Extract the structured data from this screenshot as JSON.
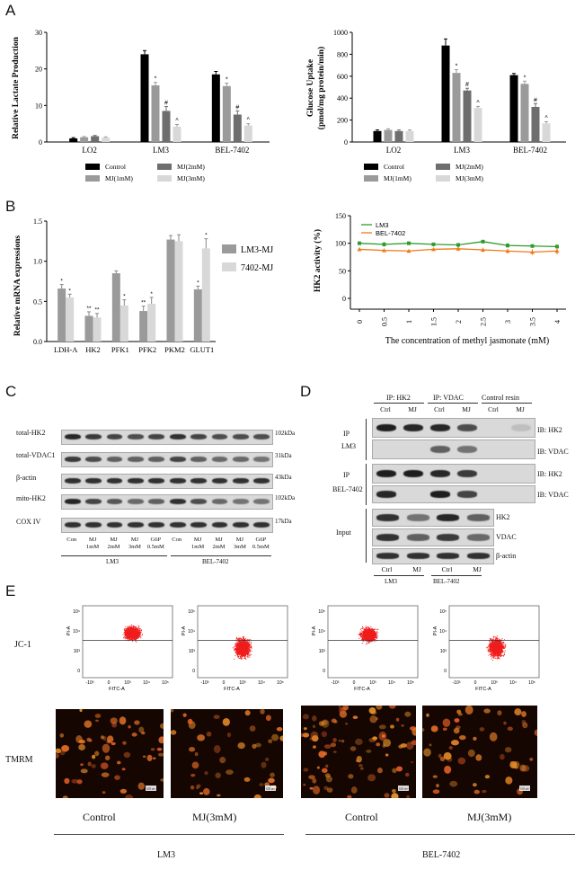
{
  "panel_labels": {
    "a": "A",
    "b": "B",
    "c": "C",
    "d": "D",
    "e": "E"
  },
  "chart_data": [
    {
      "type": "bar",
      "id": "lactate",
      "ylabel": "Relative Lactate Production",
      "ylim": [
        0,
        30
      ],
      "yticks": [
        "0",
        "10",
        "20",
        "30"
      ],
      "categories": [
        "LO2",
        "LM3",
        "BEL-7402"
      ],
      "series": [
        {
          "name": "Control",
          "color": "#000000",
          "values": [
            1.0,
            24.0,
            18.5
          ],
          "err": [
            0.2,
            1.0,
            0.8
          ],
          "sig": [
            "",
            "",
            ""
          ]
        },
        {
          "name": "MJ(1mM)",
          "color": "#9a9a9a",
          "values": [
            1.3,
            15.5,
            15.3
          ],
          "err": [
            0.2,
            0.8,
            0.8
          ],
          "sig": [
            "",
            "*",
            "*"
          ]
        },
        {
          "name": "MJ(2mM)",
          "color": "#6e6e6e",
          "values": [
            1.6,
            8.5,
            7.5
          ],
          "err": [
            0.2,
            1.2,
            1.0
          ],
          "sig": [
            "",
            "#",
            "#"
          ]
        },
        {
          "name": "MJ(3mM)",
          "color": "#d8d8d8",
          "values": [
            1.2,
            4.2,
            4.5
          ],
          "err": [
            0.2,
            0.6,
            0.5
          ],
          "sig": [
            "",
            "^",
            "^"
          ]
        }
      ],
      "legend": [
        "Control",
        "MJ(2mM)",
        "MJ(1mM)",
        "MJ(3mM)"
      ]
    },
    {
      "type": "bar",
      "id": "glucose",
      "ylabel": "Glucose Uptake (pmol/mg protein/min)",
      "ylabel1": "Glucose Uptake",
      "ylabel2": "(pmol/mg protein/min)",
      "ylim": [
        0,
        1000
      ],
      "yticks": [
        "0",
        "200",
        "400",
        "600",
        "800",
        "1000"
      ],
      "categories": [
        "LO2",
        "LM3",
        "BEL-7402"
      ],
      "series": [
        {
          "name": "Control",
          "color": "#000000",
          "values": [
            100,
            880,
            610
          ],
          "err": [
            10,
            60,
            15
          ],
          "sig": [
            "",
            "",
            ""
          ]
        },
        {
          "name": "MJ(1mM)",
          "color": "#9a9a9a",
          "values": [
            110,
            630,
            530
          ],
          "err": [
            10,
            30,
            25
          ],
          "sig": [
            "",
            "*",
            "*"
          ]
        },
        {
          "name": "MJ(2mM)",
          "color": "#6e6e6e",
          "values": [
            100,
            470,
            320
          ],
          "err": [
            10,
            20,
            30
          ],
          "sig": [
            "",
            "#",
            "#"
          ]
        },
        {
          "name": "MJ(3mM)",
          "color": "#d8d8d8",
          "values": [
            100,
            310,
            170
          ],
          "err": [
            10,
            15,
            15
          ],
          "sig": [
            "",
            "^",
            "^"
          ]
        }
      ],
      "legend": [
        "Control",
        "MJ(2mM)",
        "MJ(1mM)",
        "MJ(3mM)"
      ]
    },
    {
      "type": "bar",
      "id": "mrna",
      "ylabel": "Relative mRNA expressions",
      "ylim": [
        0,
        1.5
      ],
      "yticks": [
        "0.0",
        "0.5",
        "1.0",
        "1.5"
      ],
      "categories": [
        "LDH-A",
        "HK2",
        "PFK1",
        "PFK2",
        "PKM2",
        "GLUT1"
      ],
      "series": [
        {
          "name": "LM3-MJ",
          "color": "#9a9a9a",
          "values": [
            0.66,
            0.32,
            0.85,
            0.38,
            1.27,
            0.65
          ],
          "err": [
            0.05,
            0.05,
            0.03,
            0.06,
            0.05,
            0.04
          ],
          "sig": [
            "*",
            "**",
            "",
            "**",
            "",
            "*"
          ]
        },
        {
          "name": "7402-MJ",
          "color": "#d8d8d8",
          "values": [
            0.55,
            0.3,
            0.45,
            0.47,
            1.25,
            1.16
          ],
          "err": [
            0.04,
            0.05,
            0.07,
            0.08,
            0.08,
            0.12
          ],
          "sig": [
            "*",
            "**",
            "*",
            "*",
            "",
            "*"
          ]
        }
      ]
    },
    {
      "type": "line",
      "id": "hk2",
      "ylabel": "HK2 activity (%)",
      "xlabel": "The concentration of methyl jasmonate (mM)",
      "ylim": [
        0,
        150
      ],
      "yticks": [
        "0",
        "50",
        "100",
        "150"
      ],
      "x": [
        0,
        0.5,
        1,
        1.5,
        2,
        2.5,
        3,
        3.5,
        4
      ],
      "xticks": [
        "0",
        "0.5",
        "1",
        "1.5",
        "2",
        "2.5",
        "3",
        "3.5",
        "4"
      ],
      "series": [
        {
          "name": "LM3",
          "color": "#2e9b2e",
          "values": [
            100,
            98,
            100,
            98,
            97,
            103,
            96,
            95,
            94
          ],
          "err": [
            3,
            4,
            3,
            3,
            3,
            2,
            4,
            3,
            3
          ]
        },
        {
          "name": "BEL-7402",
          "color": "#f07a1a",
          "values": [
            89,
            87,
            86,
            89,
            90,
            88,
            86,
            84,
            86
          ],
          "err": [
            3,
            3,
            3,
            3,
            4,
            4,
            4,
            5,
            6
          ]
        }
      ]
    }
  ],
  "blot_c": {
    "rows": [
      "total-HK2",
      "total-VDAC1",
      "β-actin",
      "mito-HK2",
      "COX IV"
    ],
    "kda": [
      "102kDa",
      "31kDa",
      "43kDa",
      "102kDa",
      "17kDa"
    ],
    "lanes": [
      "Con",
      "MJ\n1mM",
      "MJ\n2mM",
      "MJ\n3mM",
      "G6P\n0.5mM",
      "Con",
      "MJ\n1mM",
      "MJ\n2mM",
      "MJ\n3mM",
      "G6P\n0.5mM"
    ],
    "groups": [
      "LM3",
      "BEL-7402"
    ]
  },
  "blot_d": {
    "headers": [
      "IP: HK2",
      "IP: VDAC",
      "Control resin"
    ],
    "lanes": [
      "Ctrl",
      "MJ",
      "Ctrl",
      "MJ",
      "Ctrl",
      "MJ"
    ],
    "left": [
      "IP",
      "LM3",
      "IP",
      "BEL-7402",
      "Input"
    ],
    "ib": [
      "IB: HK2",
      "IB: VDAC",
      "IB: HK2",
      "IB: VDAC"
    ],
    "input": [
      "HK2",
      "VDAC",
      "β-actin"
    ],
    "bottom_lanes": [
      "Ctrl",
      "MJ",
      "Ctrl",
      "MJ"
    ],
    "groups": [
      "LM3",
      "BEL-7402"
    ]
  },
  "flow": {
    "row_label": "JC-1",
    "y_axis": "PI-A",
    "x_axis": "FITC-A",
    "ticks_y": [
      "10⁵",
      "10⁴",
      "10³",
      "0"
    ],
    "ticks_x": [
      "-10³",
      "0",
      "10³",
      "10⁴",
      "10⁵"
    ]
  },
  "tmrm": {
    "row_label": "TMRM",
    "scale": "100 μm"
  },
  "bottom": {
    "conditions": [
      "Control",
      "MJ(3mM)",
      "Control",
      "MJ(3mM)"
    ],
    "groups": [
      "LM3",
      "BEL-7402"
    ]
  }
}
